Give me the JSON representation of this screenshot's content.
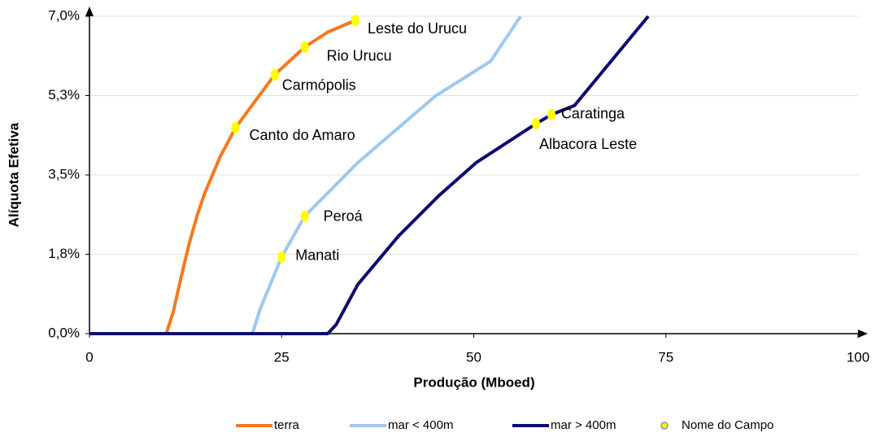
{
  "chart_data": {
    "type": "line",
    "xlabel": "Produção (Mboed)",
    "ylabel": "Alíquota Efetiva",
    "xlim": [
      0,
      100
    ],
    "xticks": [
      0,
      25,
      50,
      75,
      100
    ],
    "ylim": [
      0,
      7
    ],
    "yticks": [
      {
        "value": 0,
        "label": "0,0%"
      },
      {
        "value": 1.75,
        "label": "1,8%"
      },
      {
        "value": 3.5,
        "label": "3,5%"
      },
      {
        "value": 5.25,
        "label": "5,3%"
      },
      {
        "value": 7,
        "label": "7,0%"
      }
    ],
    "grid": true,
    "legend": "bottom",
    "series": [
      {
        "name": "terra",
        "color": "#f47920",
        "x": [
          0,
          10,
          10.9,
          12,
          13,
          14,
          15,
          17,
          19,
          21,
          24.1,
          28,
          31,
          34.6
        ],
        "values": [
          0,
          0,
          0.48,
          1.3,
          2.0,
          2.6,
          3.1,
          3.9,
          4.54,
          5.0,
          5.71,
          6.32,
          6.65,
          6.91
        ]
      },
      {
        "name": "mar < 400m",
        "color": "#9dc8f0",
        "x": [
          0,
          21.2,
          22.2,
          25,
          28,
          34.9,
          45,
          52.2,
          56.1
        ],
        "values": [
          0,
          0,
          0.54,
          1.69,
          2.59,
          3.77,
          5.24,
          6.01,
          7.0
        ]
      },
      {
        "name": "mar > 400m",
        "color": "#0c0c6e",
        "x": [
          0,
          31,
          32.1,
          34.9,
          40.2,
          45.5,
          50.3,
          58.1,
          60.1,
          63.1,
          72.7
        ],
        "values": [
          0,
          0,
          0.2,
          1.08,
          2.15,
          3.05,
          3.77,
          4.63,
          4.83,
          5.03,
          7.0
        ]
      }
    ],
    "points": {
      "name": "Nome do Campo",
      "color": "#ffff00",
      "labels": [
        "Leste do Urucu",
        "Rio Urucu",
        "Carmópolis",
        "Canto do Amaro",
        "Peroá",
        "Manati",
        "Caratinga",
        "Albacora Leste"
      ],
      "x": [
        34.6,
        28,
        24.1,
        19,
        28,
        25,
        60.1,
        58.1
      ],
      "values": [
        6.91,
        6.32,
        5.71,
        4.54,
        2.59,
        1.69,
        4.83,
        4.63
      ]
    }
  }
}
